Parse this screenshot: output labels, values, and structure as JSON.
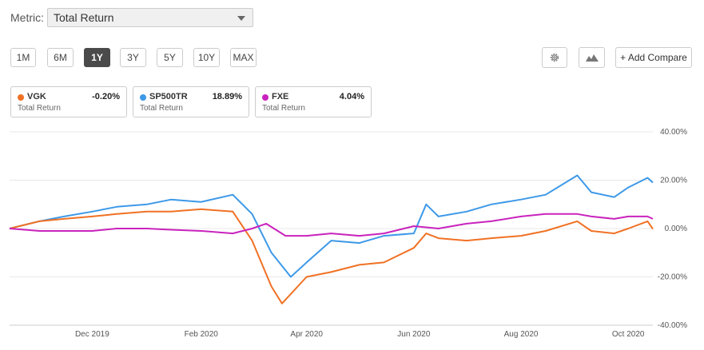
{
  "metric": {
    "label": "Metric:",
    "value": "Total Return"
  },
  "ranges": [
    {
      "label": "1M",
      "active": false
    },
    {
      "label": "6M",
      "active": false
    },
    {
      "label": "1Y",
      "active": true
    },
    {
      "label": "3Y",
      "active": false
    },
    {
      "label": "5Y",
      "active": false
    },
    {
      "label": "10Y",
      "active": false
    },
    {
      "label": "MAX",
      "active": false
    }
  ],
  "toolbar": {
    "settings_icon": "gear-icon",
    "chart_type_icon": "mountain-chart-icon",
    "add_compare_label": "+ Add Compare"
  },
  "cards": [
    {
      "symbol": "VGK",
      "change": "-0.20%",
      "subtitle": "Total Return",
      "color": "#f07124"
    },
    {
      "symbol": "SP500TR",
      "change": "18.89%",
      "subtitle": "Total Return",
      "color": "#3d99e8"
    },
    {
      "symbol": "FXE",
      "change": "4.04%",
      "subtitle": "Total Return",
      "color": "#c923bd"
    }
  ],
  "chart_data": {
    "type": "line",
    "x_unit": "date",
    "x_range": [
      "2019-10-15",
      "2020-10-15"
    ],
    "ylim": [
      -40,
      40
    ],
    "y_ticks": [
      40,
      20,
      0,
      -20,
      -40
    ],
    "y_tick_labels": [
      "40.00%",
      "20.00%",
      "0.00%",
      "-20.00%",
      "-40.00%"
    ],
    "x_ticks": [
      "2019-12-01",
      "2020-02-01",
      "2020-04-01",
      "2020-06-01",
      "2020-08-01",
      "2020-10-01"
    ],
    "x_tick_labels": [
      "Dec 2019",
      "Feb 2020",
      "Apr 2020",
      "Jun 2020",
      "Aug 2020",
      "Oct 2020"
    ],
    "grid": true,
    "series": [
      {
        "name": "SP500TR",
        "color": "#3d99e8",
        "x": [
          "2019-10-15",
          "2019-11-01",
          "2019-11-15",
          "2019-12-01",
          "2019-12-15",
          "2020-01-01",
          "2020-01-15",
          "2020-02-01",
          "2020-02-19",
          "2020-03-01",
          "2020-03-12",
          "2020-03-23",
          "2020-04-01",
          "2020-04-15",
          "2020-05-01",
          "2020-05-15",
          "2020-06-01",
          "2020-06-08",
          "2020-06-15",
          "2020-07-01",
          "2020-07-15",
          "2020-08-01",
          "2020-08-15",
          "2020-09-02",
          "2020-09-10",
          "2020-09-23",
          "2020-10-01",
          "2020-10-12",
          "2020-10-15"
        ],
        "y": [
          0,
          3,
          5,
          7,
          9,
          10,
          12,
          11,
          14,
          6,
          -10,
          -20,
          -14,
          -5,
          -6,
          -3,
          -2,
          10,
          5,
          7,
          10,
          12,
          14,
          22,
          15,
          13,
          17,
          21,
          19
        ]
      },
      {
        "name": "VGK",
        "color": "#f07124",
        "x": [
          "2019-10-15",
          "2019-11-01",
          "2019-11-15",
          "2019-12-01",
          "2019-12-15",
          "2020-01-01",
          "2020-01-15",
          "2020-02-01",
          "2020-02-19",
          "2020-03-01",
          "2020-03-12",
          "2020-03-18",
          "2020-04-01",
          "2020-04-15",
          "2020-05-01",
          "2020-05-15",
          "2020-06-01",
          "2020-06-08",
          "2020-06-15",
          "2020-07-01",
          "2020-07-15",
          "2020-08-01",
          "2020-08-15",
          "2020-09-02",
          "2020-09-10",
          "2020-09-23",
          "2020-10-01",
          "2020-10-12",
          "2020-10-15"
        ],
        "y": [
          0,
          3,
          4,
          5,
          6,
          7,
          7,
          8,
          7,
          -5,
          -24,
          -31,
          -20,
          -18,
          -15,
          -14,
          -8,
          -2,
          -4,
          -5,
          -4,
          -3,
          -1,
          3,
          -1,
          -2,
          0,
          3,
          -0.2
        ]
      },
      {
        "name": "FXE",
        "color": "#c923bd",
        "x": [
          "2019-10-15",
          "2019-11-01",
          "2019-11-15",
          "2019-12-01",
          "2019-12-15",
          "2020-01-01",
          "2020-01-15",
          "2020-02-01",
          "2020-02-19",
          "2020-03-01",
          "2020-03-09",
          "2020-03-20",
          "2020-04-01",
          "2020-04-15",
          "2020-05-01",
          "2020-05-15",
          "2020-06-01",
          "2020-06-15",
          "2020-07-01",
          "2020-07-15",
          "2020-08-01",
          "2020-08-15",
          "2020-09-02",
          "2020-09-10",
          "2020-09-23",
          "2020-10-01",
          "2020-10-12",
          "2020-10-15"
        ],
        "y": [
          0,
          -1,
          -1,
          -1,
          0,
          0,
          -0.5,
          -1,
          -2,
          0,
          2,
          -3,
          -3,
          -2,
          -3,
          -2,
          1,
          0,
          2,
          3,
          5,
          6,
          6,
          5,
          4,
          5,
          5,
          4
        ]
      }
    ]
  }
}
